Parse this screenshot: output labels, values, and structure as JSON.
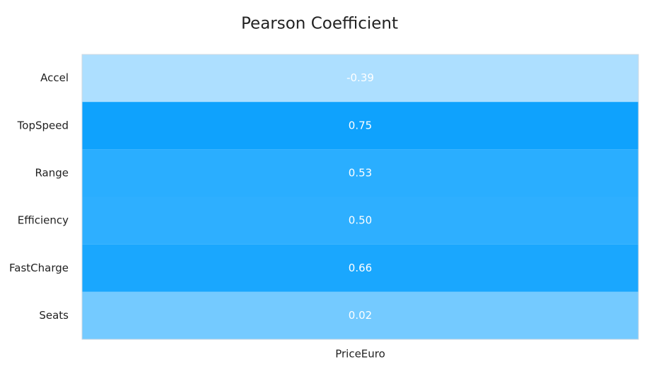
{
  "chart_data": {
    "type": "heatmap",
    "title": "Pearson Coefficient",
    "x_categories": [
      "PriceEuro"
    ],
    "y_categories": [
      "Accel",
      "TopSpeed",
      "Range",
      "Efficiency",
      "FastCharge",
      "Seats"
    ],
    "values": [
      [
        -0.39
      ],
      [
        0.75
      ],
      [
        0.53
      ],
      [
        0.5
      ],
      [
        0.66
      ],
      [
        0.02
      ]
    ],
    "value_labels": [
      [
        "-0.39"
      ],
      [
        "0.75"
      ],
      [
        "0.53"
      ],
      [
        "0.50"
      ],
      [
        "0.66"
      ],
      [
        "0.02"
      ]
    ],
    "colors": [
      [
        "#addfff"
      ],
      [
        "#0fa2fd"
      ],
      [
        "#2aaeff"
      ],
      [
        "#2eafff"
      ],
      [
        "#1aa7fe"
      ],
      [
        "#74caff"
      ]
    ]
  }
}
